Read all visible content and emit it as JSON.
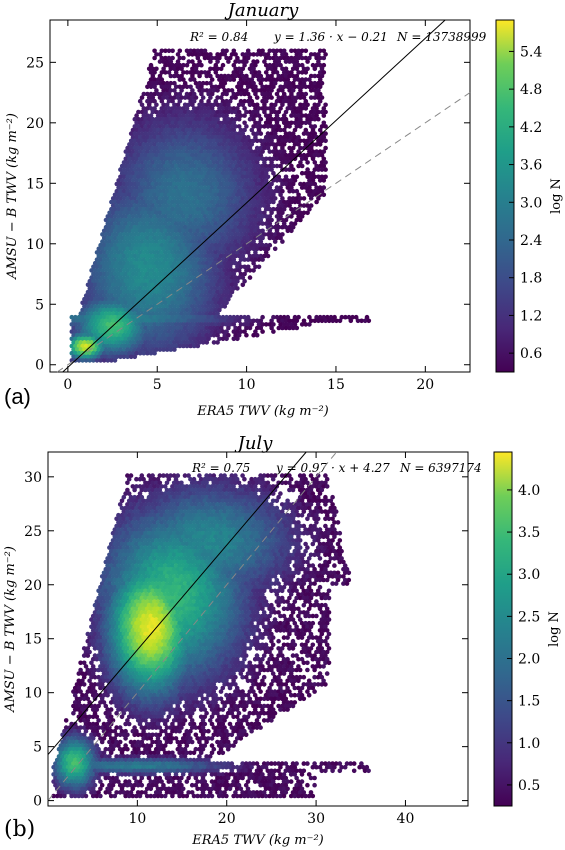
{
  "chart_data": [
    {
      "type": "heatmap",
      "panel_label": "(a)",
      "title": "January",
      "xlabel": "ERA5 TWV (kg m⁻²)",
      "ylabel": "AMSU − B TWV (kg m⁻²)",
      "annotation": {
        "r2": "R² = 0.84",
        "fit": "y = 1.36 · x − 0.21",
        "n": "N = 13738999"
      },
      "fit_line": {
        "slope": 1.36,
        "intercept": -0.21
      },
      "identity_line": {
        "slope": 1.0,
        "intercept": 0.0
      },
      "xlim": [
        -1,
        22.5
      ],
      "ylim": [
        -0.6,
        28.5
      ],
      "xticks": [
        0,
        5,
        10,
        15,
        20
      ],
      "yticks": [
        0,
        5,
        10,
        15,
        20,
        25
      ],
      "colorbar": {
        "label": "log N",
        "range": [
          0.3,
          5.9
        ],
        "ticks": [
          0.6,
          1.2,
          1.8,
          2.4,
          3.0,
          3.6,
          4.2,
          4.8,
          5.4
        ]
      },
      "density_blobs": [
        {
          "cx": 1.0,
          "cy": 1.5,
          "sx": 0.8,
          "sy": 0.8,
          "logN": 5.5
        },
        {
          "cx": 2.5,
          "cy": 3.2,
          "sx": 1.5,
          "sy": 1.8,
          "logN": 4.2
        },
        {
          "cx": 4.5,
          "cy": 8.0,
          "sx": 3.0,
          "sy": 5.5,
          "logN": 3.0
        },
        {
          "cx": 6.5,
          "cy": 14.0,
          "sx": 3.2,
          "sy": 5.0,
          "logN": 2.4
        },
        {
          "cx": 3.0,
          "cy": 3.8,
          "sx": 4.5,
          "sy": 0.7,
          "logN": 2.8
        }
      ]
    },
    {
      "type": "heatmap",
      "panel_label": "(b)",
      "title": "July",
      "xlabel": "ERA5 TWV (kg m⁻²)",
      "ylabel": "AMSU − B TWV (kg m⁻²)",
      "annotation": {
        "r2": "R² = 0.75",
        "fit": "y = 0.97 · x + 4.27",
        "n": "N = 6397174"
      },
      "fit_line": {
        "slope": 0.97,
        "intercept": 4.27
      },
      "identity_line": {
        "slope": 1.0,
        "intercept": 0.0
      },
      "xlim": [
        0,
        47
      ],
      "ylim": [
        -0.5,
        32.3
      ],
      "xticks": [
        10,
        20,
        30,
        40
      ],
      "yticks": [
        0,
        5,
        10,
        15,
        20,
        25,
        30
      ],
      "colorbar": {
        "label": "log N",
        "range": [
          0.25,
          4.45
        ],
        "ticks": [
          0.5,
          1.0,
          1.5,
          2.0,
          2.5,
          3.0,
          3.5,
          4.0
        ]
      },
      "density_blobs": [
        {
          "cx": 11.5,
          "cy": 16.0,
          "sx": 3.5,
          "sy": 4.5,
          "logN": 4.3
        },
        {
          "cx": 14.0,
          "cy": 19.0,
          "sx": 6.0,
          "sy": 6.0,
          "logN": 3.0
        },
        {
          "cx": 3.0,
          "cy": 3.5,
          "sx": 1.8,
          "sy": 1.8,
          "logN": 3.2
        },
        {
          "cx": 18.0,
          "cy": 24.0,
          "sx": 7.0,
          "sy": 4.0,
          "logN": 2.2
        },
        {
          "cx": 10.0,
          "cy": 3.2,
          "sx": 8.0,
          "sy": 0.6,
          "logN": 2.0
        }
      ]
    }
  ]
}
